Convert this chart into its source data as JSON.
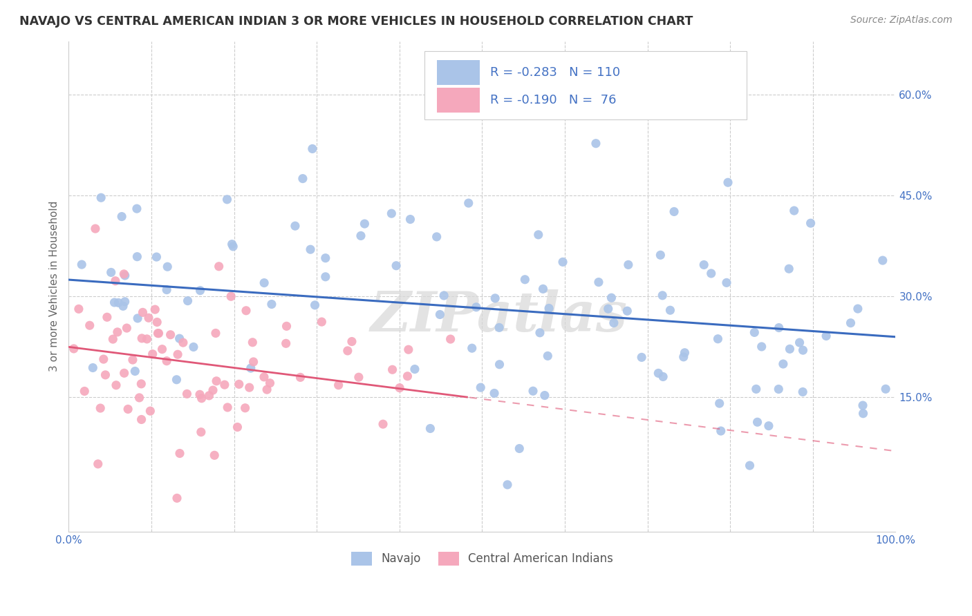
{
  "title": "NAVAJO VS CENTRAL AMERICAN INDIAN 3 OR MORE VEHICLES IN HOUSEHOLD CORRELATION CHART",
  "source": "Source: ZipAtlas.com",
  "ylabel": "3 or more Vehicles in Household",
  "ytick_vals": [
    0.15,
    0.3,
    0.45,
    0.6
  ],
  "ytick_labels": [
    "15.0%",
    "30.0%",
    "45.0%",
    "60.0%"
  ],
  "navajo_color": "#aac4e8",
  "central_color": "#f5a8bc",
  "navajo_line_color": "#3a6bbf",
  "central_line_color": "#e05878",
  "watermark": "ZIPatlas",
  "R_navajo": -0.283,
  "N_navajo": 110,
  "R_central": -0.19,
  "N_central": 76,
  "navajo_intercept": 0.325,
  "navajo_slope": -0.085,
  "central_intercept": 0.225,
  "central_slope": -0.155,
  "xlim": [
    0.0,
    1.0
  ],
  "ylim": [
    -0.05,
    0.68
  ],
  "background_color": "#ffffff",
  "title_color": "#333333",
  "label_color": "#4472c4",
  "grid_color": "#cccccc"
}
